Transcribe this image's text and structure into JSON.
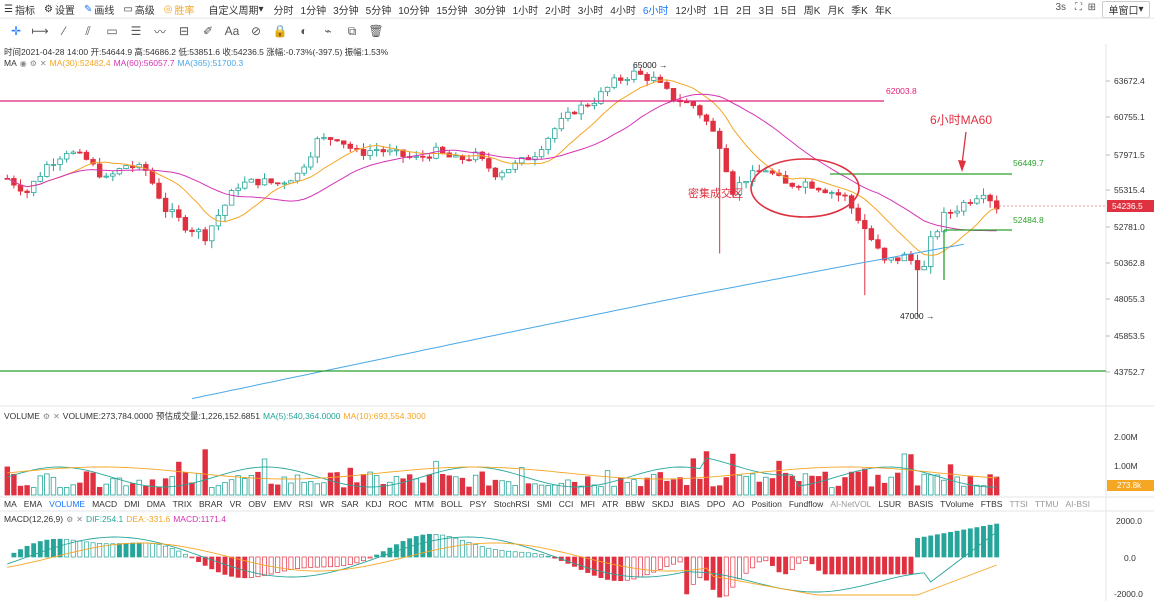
{
  "toolbar": {
    "items": [
      {
        "icon": "☰",
        "label": "指标"
      },
      {
        "icon": "⚙",
        "label": "设置"
      },
      {
        "icon": "✎",
        "label": "画线",
        "active": true
      },
      {
        "icon": "▭",
        "label": "高级"
      },
      {
        "icon": "◎",
        "label": "胜率",
        "accent": true
      }
    ],
    "custom_period": "自定义周期",
    "periods": [
      "分时",
      "1分钟",
      "3分钟",
      "5分钟",
      "10分钟",
      "15分钟",
      "30分钟",
      "1小时",
      "2小时",
      "3小时",
      "4小时",
      "6小时",
      "12小时",
      "1日",
      "2日",
      "3日",
      "5日",
      "周K",
      "月K",
      "季K",
      "年K"
    ],
    "active_period": "6小时",
    "refresh": "3s",
    "mode": "单窗口"
  },
  "draw_tools": [
    "crosshair",
    "h-ray",
    "trend-line",
    "channel",
    "rect",
    "text-lines",
    "wave",
    "fib",
    "pen",
    "font-a",
    "magnet",
    "lock",
    "eye",
    "link",
    "copy",
    "clear"
  ],
  "info_line": "时间2021-04-28 14:00  开:54644.9  高:54686.2  低:53851.6  收:54236.5  涨幅:-0.73%(-397.5)  振幅:1.53%",
  "ma_legend": {
    "name": "MA",
    "ma30": "MA(30):52482.4",
    "ma60": "MA(60):56057.7",
    "ma365": "MA(365):51700.3"
  },
  "vol_legend": {
    "name": "VOLUME",
    "vol": "VOLUME:273,784.0000",
    "est": "预估成交量:1,226,152.6851",
    "ma5": "MA(5):540,364.0000",
    "ma10": "MA(10):693,554.3000"
  },
  "macd_legend": {
    "name": "MACD(12,26,9)",
    "dif": "DIF:254.1",
    "dea": "DEA:-331.6",
    "macd": "MACD:1171.4"
  },
  "price_axis": [
    "63672.4",
    "60755.1",
    "57971.5",
    "55315.4",
    "52781.0",
    "50362.8",
    "48055.3",
    "45853.5",
    "43752.7"
  ],
  "current_price": "54236.5",
  "vol_axis": [
    "2.00M",
    "1.00M"
  ],
  "vol_current": "273.8k",
  "macd_axis": [
    "2000.0",
    "0.0",
    "-2000.0"
  ],
  "annotations": {
    "high": "65000",
    "low": "47000",
    "level_62003": "62003.8",
    "level_56449": "56449.7",
    "level_52484": "52484.8",
    "ma60_note": "6小时MA60",
    "cluster_note": "密集成交区"
  },
  "indicators": [
    "MA",
    "EMA",
    "VOLUME",
    "MACD",
    "DMI",
    "DMA",
    "TRIX",
    "BRAR",
    "VR",
    "OBV",
    "EMV",
    "RSI",
    "WR",
    "SAR",
    "KDJ",
    "ROC",
    "MTM",
    "BOLL",
    "PSY",
    "StochRSI",
    "SMI",
    "CCI",
    "MFI",
    "ATR",
    "BBW",
    "SKDJ",
    "BIAS",
    "DPO",
    "AO",
    "Position",
    "Fundflow",
    "AI-NetVOL",
    "LSUR",
    "BASIS",
    "TVolume",
    "FTBS",
    "TTSI",
    "TTMU",
    "AI-BSI"
  ],
  "colors": {
    "up": "#26a69a",
    "down": "#e03141",
    "ma30": "#f5a623",
    "ma60": "#d633b4",
    "ma365": "#4aa8e8",
    "accent": "#1677ff",
    "pink_line": "#e0207a",
    "green_line": "#2ca02c"
  }
}
